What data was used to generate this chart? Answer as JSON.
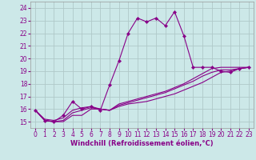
{
  "xlabel": "Windchill (Refroidissement éolien,°C)",
  "bg_color": "#cce8e8",
  "grid_color": "#b0c8c8",
  "line_color": "#880088",
  "ylim": [
    14.5,
    24.5
  ],
  "xlim": [
    -0.5,
    23.5
  ],
  "yticks": [
    15,
    16,
    17,
    18,
    19,
    20,
    21,
    22,
    23,
    24
  ],
  "xticks": [
    0,
    1,
    2,
    3,
    4,
    5,
    6,
    7,
    8,
    9,
    10,
    11,
    12,
    13,
    14,
    15,
    16,
    17,
    18,
    19,
    20,
    21,
    22,
    23
  ],
  "series": [
    [
      15.9,
      15.1,
      15.0,
      15.0,
      15.5,
      15.5,
      16.0,
      16.0,
      15.9,
      16.2,
      16.4,
      16.5,
      16.6,
      16.8,
      17.0,
      17.2,
      17.5,
      17.8,
      18.1,
      18.5,
      18.9,
      19.0,
      19.2,
      19.3
    ],
    [
      15.9,
      15.1,
      15.0,
      15.1,
      15.7,
      15.9,
      16.1,
      16.0,
      15.9,
      16.3,
      16.5,
      16.7,
      16.9,
      17.1,
      17.3,
      17.6,
      17.9,
      18.2,
      18.6,
      18.9,
      19.1,
      19.1,
      19.2,
      19.3
    ],
    [
      15.9,
      15.2,
      15.1,
      15.3,
      15.9,
      16.1,
      16.2,
      16.0,
      15.9,
      16.4,
      16.6,
      16.8,
      17.0,
      17.2,
      17.4,
      17.7,
      18.0,
      18.4,
      18.8,
      19.2,
      19.3,
      19.3,
      19.3,
      19.3
    ],
    [
      15.9,
      15.1,
      15.0,
      15.5,
      16.6,
      16.0,
      16.2,
      15.9,
      17.9,
      19.8,
      22.0,
      23.2,
      22.9,
      23.2,
      22.6,
      23.7,
      21.8,
      19.3,
      19.3,
      19.3,
      19.0,
      18.9,
      19.2,
      19.3
    ]
  ],
  "marker": "D",
  "markersize": 2.2,
  "linewidth": 0.8,
  "tick_fontsize": 5.5,
  "xlabel_fontsize": 6.0
}
